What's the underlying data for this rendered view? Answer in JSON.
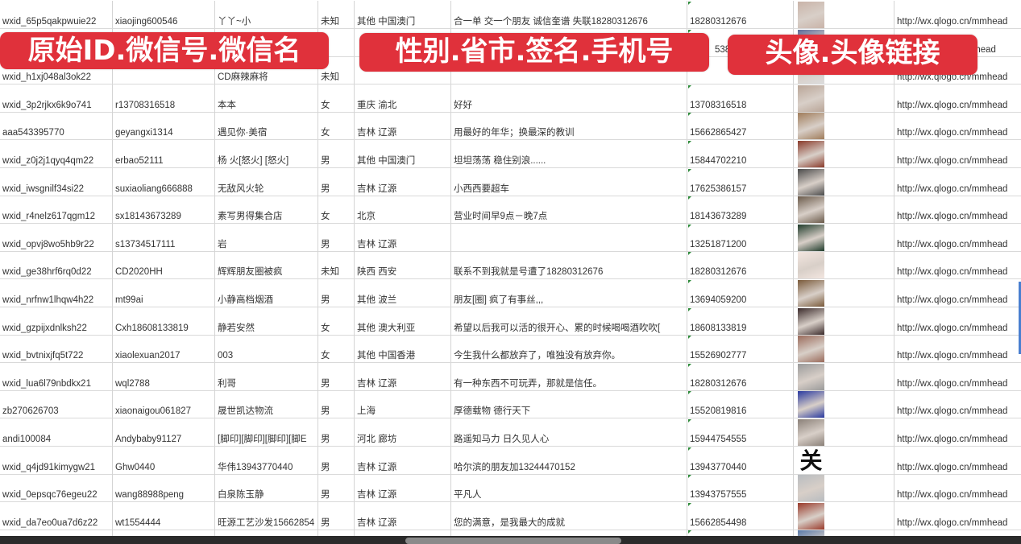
{
  "banners": {
    "left": "原始ID.微信号.微信名",
    "middle": "性别.省市.签名.手机号",
    "right": "头像.头像链接"
  },
  "rows": [
    {
      "id": "wxid_65p5qakpwuie22",
      "wechat": "xiaojing600546",
      "name": "丫丫~小",
      "gender": "未知",
      "region": "其他 中国澳门",
      "signature": "合一单 交一个朋友 诚信奎谱 失联18280312676",
      "phone": "18280312676",
      "avatar_color": "#c9b3a8",
      "url": "http://wx.qlogo.cn/mmhead"
    },
    {
      "id": "",
      "wechat": "",
      "name": "",
      "gender": "",
      "region": "",
      "signature": "",
      "phone": "5386",
      "avatar_color": "#5a6a9a",
      "url": "/mmhead"
    },
    {
      "id": "wxid_h1xj048al3ok22",
      "wechat": "",
      "name": "CD麻辣麻将",
      "gender": "未知",
      "region": "",
      "signature": "",
      "phone": "",
      "avatar_color": "#dcdcdc",
      "url": "http://wx.qlogo.cn/mmhead"
    },
    {
      "id": "wxid_3p2rjkx6k9o741",
      "wechat": "r13708316518",
      "name": "本本",
      "gender": "女",
      "region": "重庆 渝北",
      "signature": "好好",
      "phone": "13708316518",
      "avatar_color": "#b9a597",
      "url": "http://wx.qlogo.cn/mmhead"
    },
    {
      "id": "aaa543395770",
      "wechat": "geyangxi1314",
      "name": "遇见你·美宿",
      "gender": "女",
      "region": "吉林 辽源",
      "signature": "用最好的年华；换最深的教训",
      "phone": "15662865427",
      "avatar_color": "#a07c5a",
      "url": "http://wx.qlogo.cn/mmhead"
    },
    {
      "id": "wxid_z0j2j1qyq4qm22",
      "wechat": "erbao52111",
      "name": "杨 火[怒火] [怒火]",
      "gender": "男",
      "region": "其他 中国澳门",
      "signature": "坦坦荡荡 稳住别浪......",
      "phone": "15844702210",
      "avatar_color": "#8a3a2a",
      "url": "http://wx.qlogo.cn/mmhead"
    },
    {
      "id": "wxid_iwsgnilf34si22",
      "wechat": "suxiaoliang666888",
      "name": "无敌风火轮",
      "gender": "男",
      "region": "吉林 辽源",
      "signature": "小西西要超车",
      "phone": "17625386157",
      "avatar_color": "#4a4a4a",
      "url": "http://wx.qlogo.cn/mmhead"
    },
    {
      "id": "wxid_r4nelz617qgm12",
      "wechat": "sx18143673289",
      "name": "素写男得集合店",
      "gender": "女",
      "region": "北京",
      "signature": "营业时间早9点－晚7点",
      "phone": "18143673289",
      "avatar_color": "#6a5a4a",
      "url": "http://wx.qlogo.cn/mmhead"
    },
    {
      "id": "wxid_opvj8wo5hb9r22",
      "wechat": "s13734517111",
      "name": "岩",
      "gender": "男",
      "region": "吉林 辽源",
      "signature": "",
      "phone": "13251871200",
      "avatar_color": "#1f3b2a",
      "url": "http://wx.qlogo.cn/mmhead"
    },
    {
      "id": "wxid_ge38hrf6rq0d22",
      "wechat": "CD2020HH",
      "name": "辉辉朋友圈被疯",
      "gender": "未知",
      "region": "陕西 西安",
      "signature": "联系不到我就是号遭了18280312676",
      "phone": "18280312676",
      "avatar_color": "#f3e6e0",
      "url": "http://wx.qlogo.cn/mmhead"
    },
    {
      "id": "wxid_nrfnw1lhqw4h22",
      "wechat": "mt99ai",
      "name": "小静高档烟酒",
      "gender": "男",
      "region": "其他 波兰",
      "signature": "朋友[圈] 疯了有事丝,,,",
      "phone": "13694059200",
      "avatar_color": "#7a5a3a",
      "url": "http://wx.qlogo.cn/mmhead"
    },
    {
      "id": "wxid_gzpijxdnlksh22",
      "wechat": "Cxh18608133819",
      "name": "静若安然",
      "gender": "女",
      "region": "其他 澳大利亚",
      "signature": "希望以后我可以活的很开心、累的时候喝喝酒吹吹[",
      "phone": "18608133819",
      "avatar_color": "#3a2a2a",
      "url": "http://wx.qlogo.cn/mmhead"
    },
    {
      "id": "wxid_bvtnixjfq5t722",
      "wechat": "xiaolexuan2017",
      "name": "003",
      "gender": "女",
      "region": "其他 中国香港",
      "signature": "今生我什么都放弃了，唯独没有放弃你。",
      "phone": "15526902777",
      "avatar_color": "#9a6a5a",
      "url": "http://wx.qlogo.cn/mmhead"
    },
    {
      "id": "wxid_lua6l79nbdkx21",
      "wechat": "wql2788",
      "name": "利哥",
      "gender": "男",
      "region": "吉林 辽源",
      "signature": "有一种东西不可玩弄，那就是信任。",
      "phone": "18280312676",
      "avatar_color": "#9a9a9a",
      "url": "http://wx.qlogo.cn/mmhead"
    },
    {
      "id": "zb270626703",
      "wechat": "xiaonaigou061827",
      "name": "晟世凯达物流",
      "gender": "男",
      "region": "上海",
      "signature": "厚德载物 德行天下",
      "phone": "15520819816",
      "avatar_color": "#2a3aa0",
      "url": "http://wx.qlogo.cn/mmhead"
    },
    {
      "id": "andi100084",
      "wechat": "Andybaby91127",
      "name": "[脚印][脚印][脚印][脚E",
      "gender": "男",
      "region": "河北 廊坊",
      "signature": "路遥知马力 日久见人心",
      "phone": "15944754555",
      "avatar_color": "#8a8078",
      "url": "http://wx.qlogo.cn/mmhead"
    },
    {
      "id": "wxid_q4jd91kimygw21",
      "wechat": "Ghw0440",
      "name": "华伟13943770440",
      "gender": "男",
      "region": "吉林 辽源",
      "signature": "哈尔滨的朋友加13244470152",
      "phone": "13943770440",
      "avatar_color": "#ffffff",
      "avatar_glyph": "关",
      "url": "http://wx.qlogo.cn/mmhead"
    },
    {
      "id": "wxid_0epsqc76egeu22",
      "wechat": "wang88988peng",
      "name": "白泉陈玉静",
      "gender": "男",
      "region": "吉林 辽源",
      "signature": "平凡人",
      "phone": "13943757555",
      "avatar_color": "#b8bcc0",
      "url": "http://wx.qlogo.cn/mmhead"
    },
    {
      "id": "wxid_da7eo0ua7d6z22",
      "wechat": "wt1554444",
      "name": "旺源工艺沙发15662854",
      "gender": "男",
      "region": "吉林 辽源",
      "signature": "您的满意，是我最大的成就",
      "phone": "15662854498",
      "avatar_color": "#9a3a2a",
      "url": "http://wx.qlogo.cn/mmhead"
    },
    {
      "id": "",
      "wechat": "",
      "name": "",
      "gender": "",
      "region": "",
      "signature": "",
      "phone": "",
      "avatar_color": "#5a7aaa",
      "url": ""
    }
  ]
}
